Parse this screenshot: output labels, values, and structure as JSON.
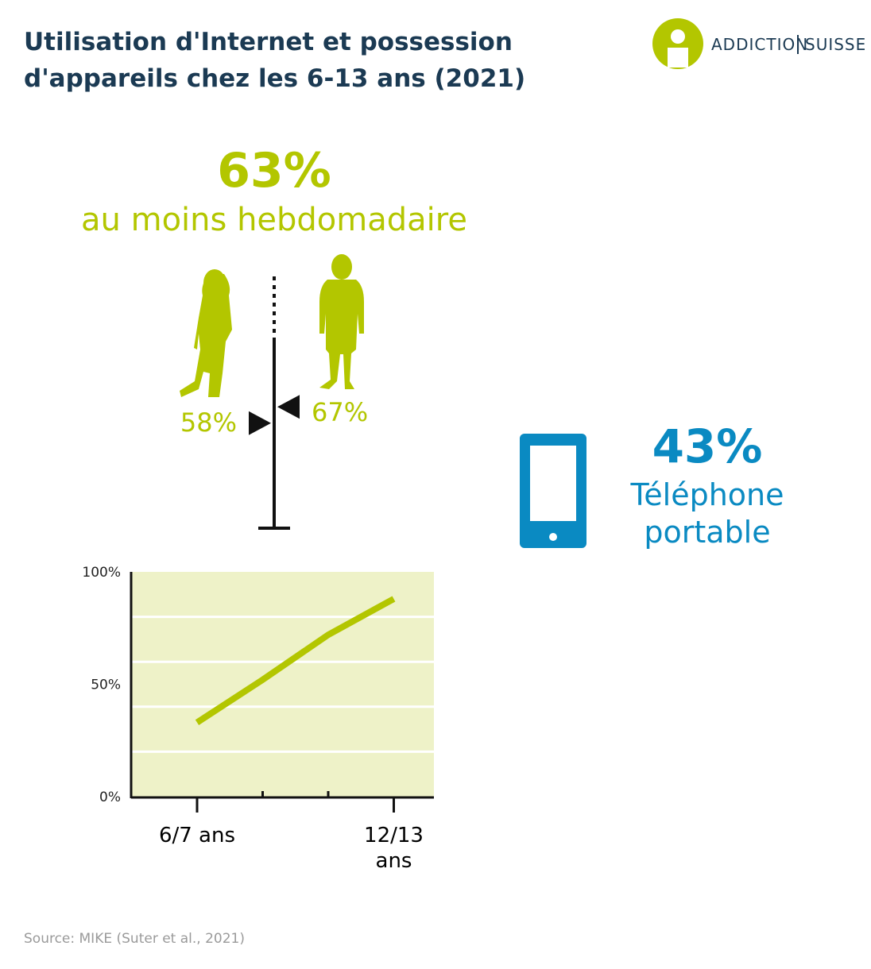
{
  "header": {
    "title": "Utilisation d'Internet et possession d'appareils chez les 6-13 ans (2021)",
    "logo": [
      "ADDICTION",
      "SUISSE"
    ]
  },
  "weekly": {
    "label": "63%",
    "text": "au moins hebdomadaire",
    "color": "#b3c600",
    "ylim": [
      0,
      100
    ],
    "girls": {
      "value": 58,
      "label": "58%"
    },
    "boys": {
      "value": 67,
      "label": "67%"
    }
  },
  "phone": {
    "label": "43%",
    "text": "Téléphone portable",
    "color": "#0a8ac2"
  },
  "chart_data": {
    "type": "line",
    "categories": [
      "6/7 ans",
      null,
      null,
      "12/13 ans"
    ],
    "values": [
      33,
      52,
      72,
      88
    ],
    "color": "#b3c600",
    "ylim": [
      0,
      100
    ],
    "yticks": [
      {
        "value": 0,
        "label": "0%"
      },
      {
        "value": 50,
        "label": "50%"
      },
      {
        "value": 100,
        "label": "100%"
      }
    ],
    "grid": [
      20,
      40,
      60,
      80
    ],
    "background": "#eef2c8"
  },
  "source": "Source: MIKE (Suter et al., 2021)"
}
